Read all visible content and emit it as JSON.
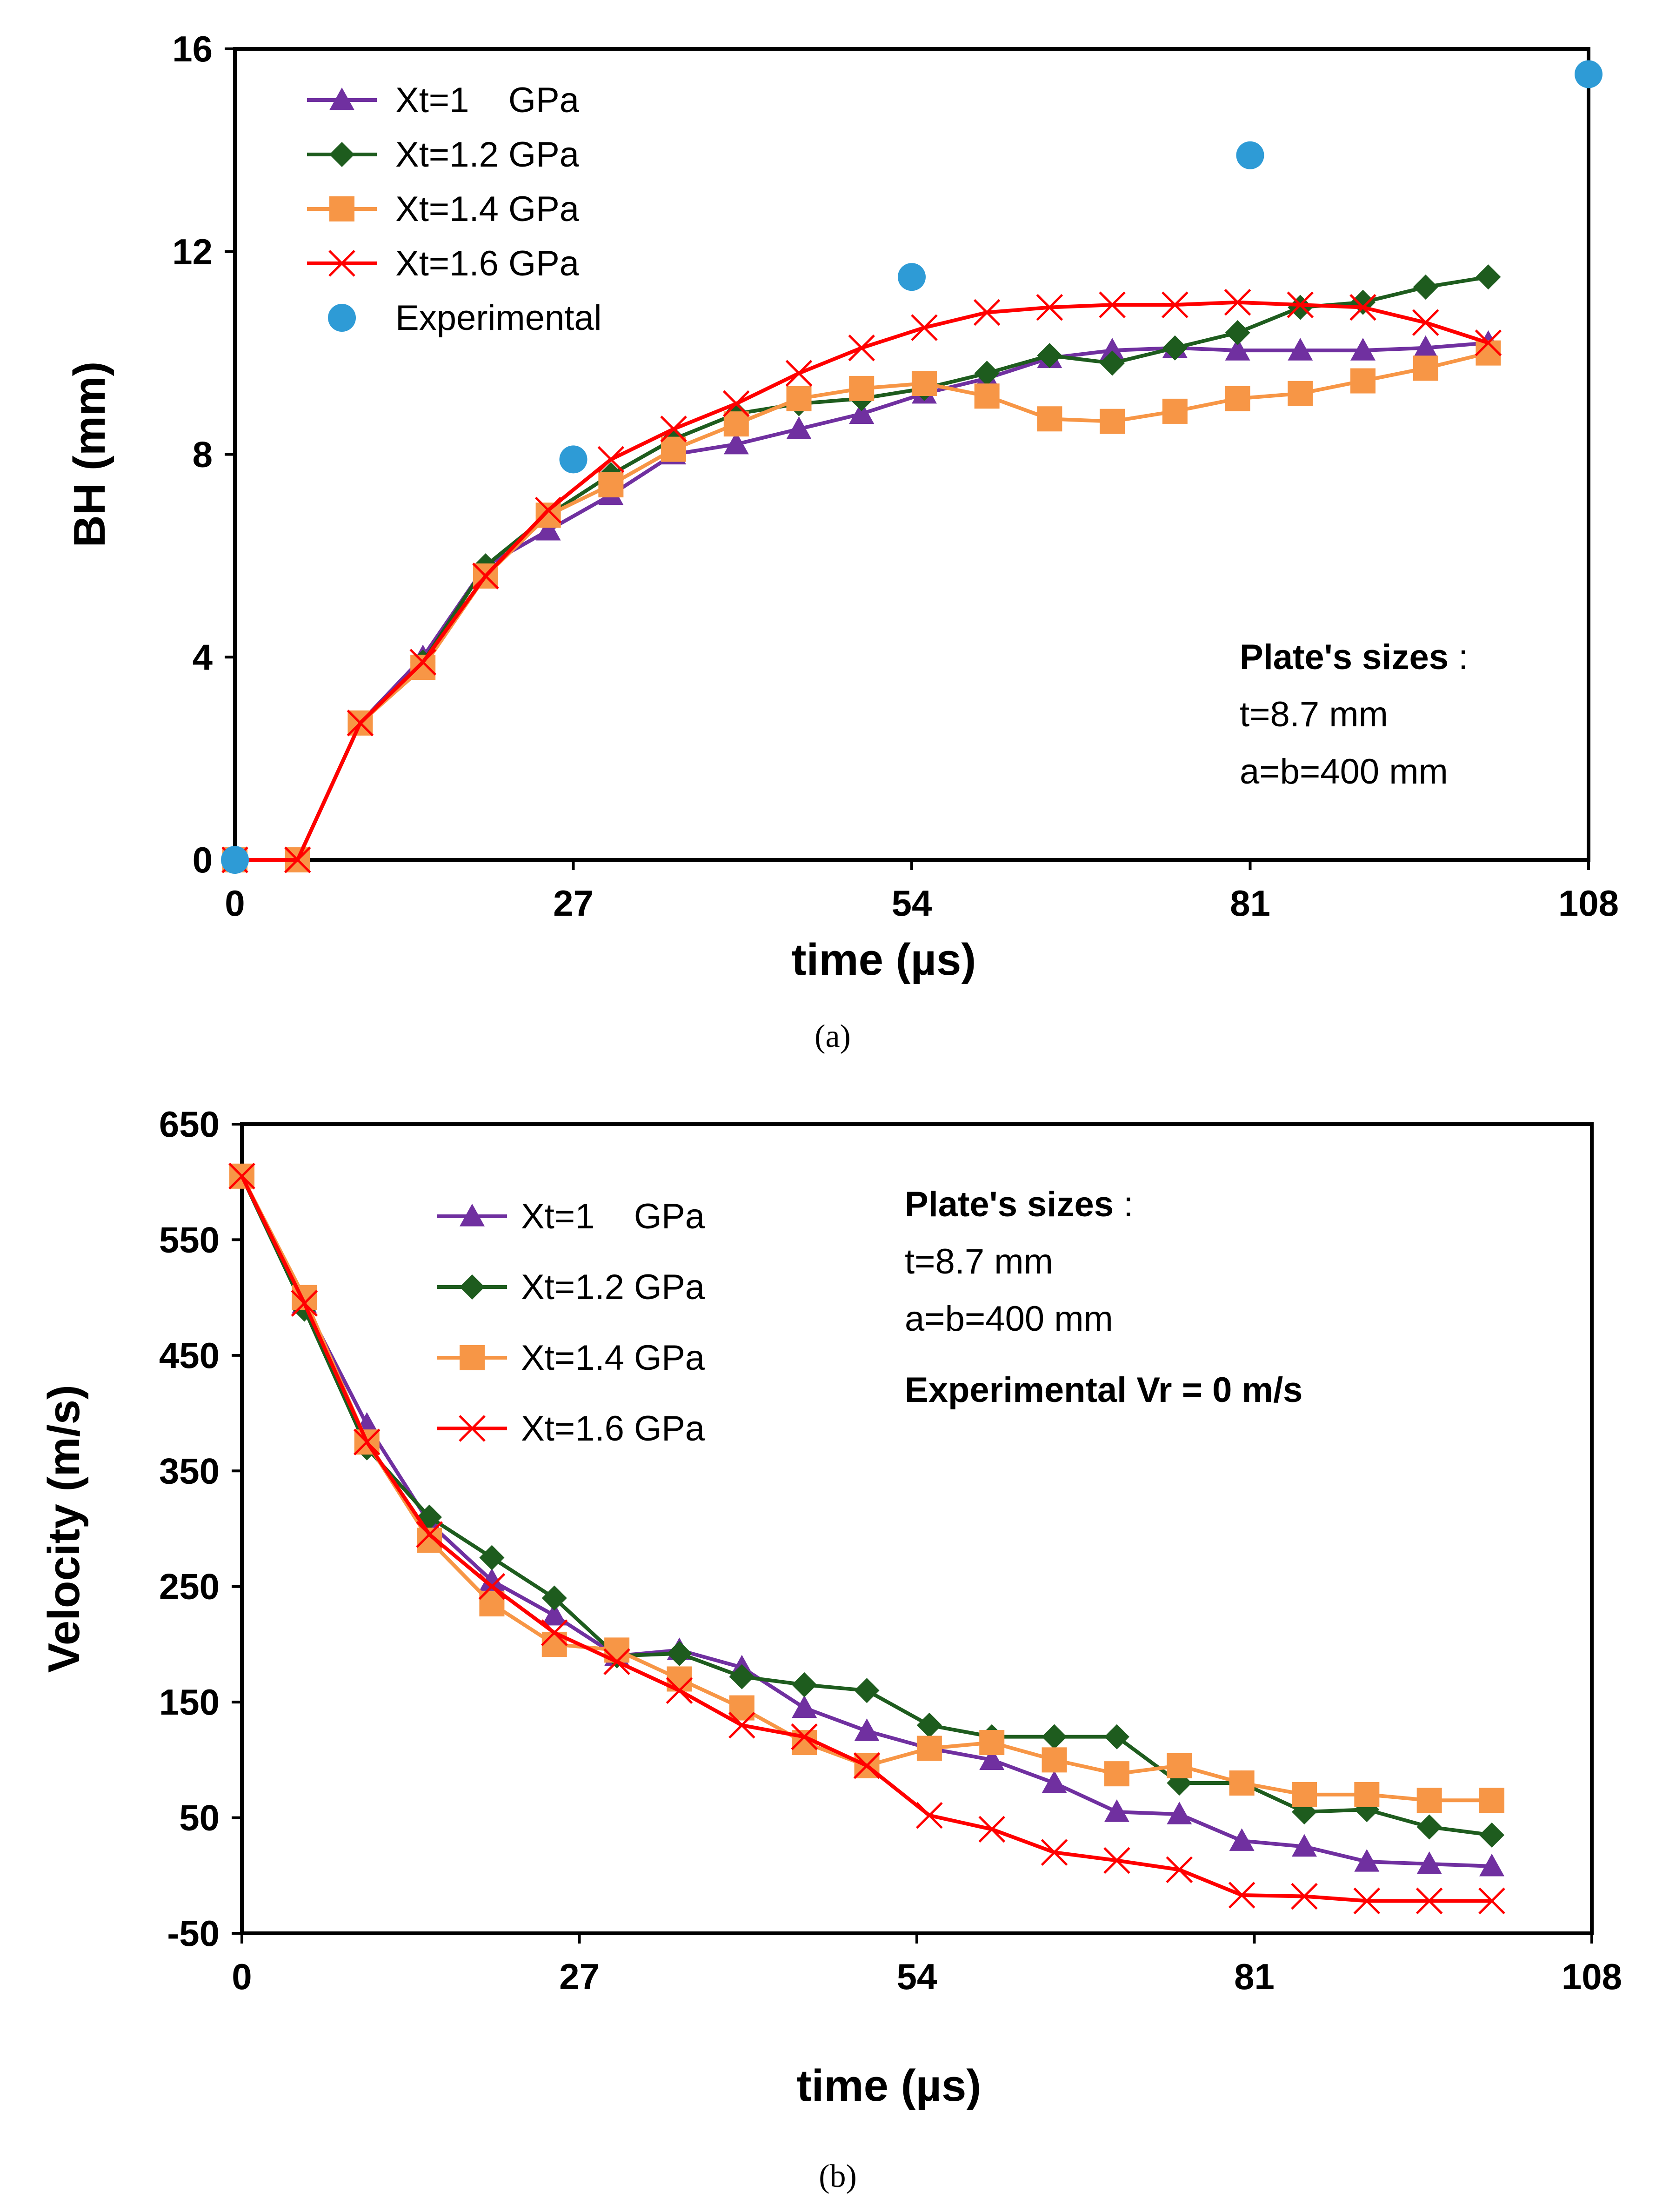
{
  "colors": {
    "purple": "#7030A0",
    "green": "#1E5C1E",
    "orange": "#F79646",
    "red": "#FF0000",
    "blue": "#2E9BD6"
  },
  "chart_data": [
    {
      "type": "line",
      "panel": "(a)",
      "xlabel": "time (µs)",
      "ylabel": "BH (mm)",
      "xlim": [
        0,
        108
      ],
      "ylim": [
        0,
        16
      ],
      "xticks": [
        "0",
        "27",
        "54",
        "81",
        "108"
      ],
      "yticks": [
        "0",
        "4",
        "8",
        "12",
        "16"
      ],
      "annotation": {
        "title": "Plate's sizes",
        "title_suffix": " :",
        "line1": "t=8.7 mm",
        "line2": "a=b=400 mm"
      },
      "series": [
        {
          "name": "Xt=1    GPa",
          "color": "purple",
          "marker": "triangle",
          "x": [
            0,
            5,
            10,
            15,
            20,
            25,
            30,
            35,
            40,
            45,
            50,
            55,
            60,
            65,
            70,
            75,
            80,
            85,
            90,
            95,
            100
          ],
          "y": [
            0,
            0,
            2.7,
            4.0,
            5.8,
            6.5,
            7.2,
            8.0,
            8.2,
            8.5,
            8.8,
            9.2,
            9.5,
            9.9,
            10.05,
            10.1,
            10.05,
            10.05,
            10.05,
            10.1,
            10.2
          ]
        },
        {
          "name": "Xt=1.2 GPa",
          "color": "green",
          "marker": "diamond",
          "x": [
            0,
            5,
            10,
            15,
            20,
            25,
            30,
            35,
            40,
            45,
            50,
            55,
            60,
            65,
            70,
            75,
            80,
            85,
            90,
            95,
            100
          ],
          "y": [
            0,
            0,
            2.7,
            3.9,
            5.8,
            6.8,
            7.6,
            8.3,
            8.8,
            9.0,
            9.1,
            9.3,
            9.6,
            9.95,
            9.8,
            10.1,
            10.4,
            10.9,
            11.0,
            11.3,
            11.5
          ]
        },
        {
          "name": "Xt=1.4 GPa",
          "color": "orange",
          "marker": "square",
          "x": [
            0,
            5,
            10,
            15,
            20,
            25,
            30,
            35,
            40,
            45,
            50,
            55,
            60,
            65,
            70,
            75,
            80,
            85,
            90,
            95,
            100
          ],
          "y": [
            0,
            0,
            2.7,
            3.8,
            5.6,
            6.8,
            7.4,
            8.1,
            8.6,
            9.1,
            9.3,
            9.4,
            9.15,
            8.7,
            8.65,
            8.85,
            9.1,
            9.2,
            9.45,
            9.7,
            10.0
          ]
        },
        {
          "name": "Xt=1.6 GPa",
          "color": "red",
          "marker": "x",
          "x": [
            0,
            5,
            10,
            15,
            20,
            25,
            30,
            35,
            40,
            45,
            50,
            55,
            60,
            65,
            70,
            75,
            80,
            85,
            90,
            95,
            100
          ],
          "y": [
            0,
            0,
            2.7,
            3.9,
            5.6,
            6.9,
            7.9,
            8.5,
            9.0,
            9.6,
            10.1,
            10.5,
            10.8,
            10.9,
            10.95,
            10.95,
            11.0,
            10.95,
            10.9,
            10.6,
            10.2
          ]
        },
        {
          "name": "Experimental",
          "color": "blue",
          "marker": "circle",
          "line": false,
          "x": [
            0,
            27,
            54,
            81,
            108
          ],
          "y": [
            0,
            7.9,
            11.5,
            13.9,
            15.5
          ]
        }
      ]
    },
    {
      "type": "line",
      "panel": "(b)",
      "xlabel": "time (µs)",
      "ylabel": "Velocity (m/s)",
      "xlim": [
        0,
        108
      ],
      "ylim": [
        -50,
        650
      ],
      "xticks": [
        "0",
        "27",
        "54",
        "81",
        "108"
      ],
      "yticks": [
        "-50",
        "50",
        "150",
        "250",
        "350",
        "450",
        "550",
        "650"
      ],
      "annotation": {
        "title": "Plate's sizes",
        "title_suffix": " :",
        "line1": "t=8.7 mm",
        "line2": "a=b=400 mm",
        "line3": "Experimental Vr = 0 m/s"
      },
      "series": [
        {
          "name": "Xt=1    GPa",
          "color": "purple",
          "marker": "triangle",
          "x": [
            0,
            5,
            10,
            15,
            20,
            25,
            30,
            35,
            40,
            45,
            50,
            55,
            60,
            65,
            70,
            75,
            80,
            85,
            90,
            95,
            100
          ],
          "y": [
            605,
            495,
            390,
            305,
            255,
            225,
            190,
            195,
            180,
            145,
            125,
            110,
            100,
            80,
            55,
            53,
            30,
            25,
            12,
            10,
            8
          ]
        },
        {
          "name": "Xt=1.2 GPa",
          "color": "green",
          "marker": "diamond",
          "x": [
            0,
            5,
            10,
            15,
            20,
            25,
            30,
            35,
            40,
            45,
            50,
            55,
            60,
            65,
            70,
            75,
            80,
            85,
            90,
            95,
            100
          ],
          "y": [
            605,
            490,
            370,
            310,
            275,
            240,
            190,
            192,
            172,
            165,
            160,
            130,
            120,
            120,
            120,
            80,
            80,
            55,
            57,
            42,
            35
          ]
        },
        {
          "name": "Xt=1.4 GPa",
          "color": "orange",
          "marker": "square",
          "x": [
            0,
            5,
            10,
            15,
            20,
            25,
            30,
            35,
            40,
            45,
            50,
            55,
            60,
            65,
            70,
            75,
            80,
            85,
            90,
            95,
            100
          ],
          "y": [
            605,
            500,
            375,
            290,
            235,
            200,
            195,
            170,
            145,
            115,
            95,
            110,
            115,
            100,
            88,
            95,
            80,
            70,
            70,
            65,
            65
          ]
        },
        {
          "name": "Xt=1.6 GPa",
          "color": "red",
          "marker": "x",
          "x": [
            0,
            5,
            10,
            15,
            20,
            25,
            30,
            35,
            40,
            45,
            50,
            55,
            60,
            65,
            70,
            75,
            80,
            85,
            90,
            95,
            100
          ],
          "y": [
            605,
            495,
            375,
            295,
            250,
            210,
            185,
            160,
            130,
            120,
            95,
            52,
            40,
            20,
            13,
            5,
            -17,
            -18,
            -22,
            -22,
            -22
          ]
        }
      ]
    }
  ]
}
